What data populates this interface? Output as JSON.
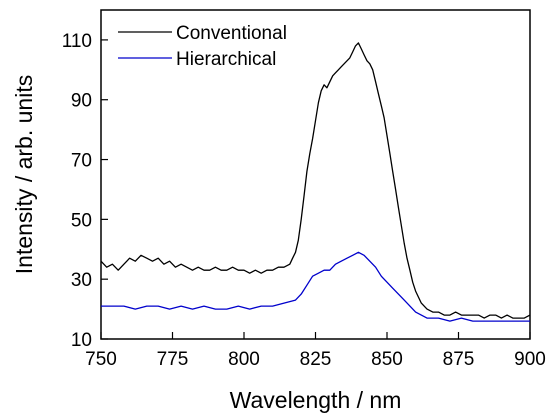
{
  "chart_data": {
    "type": "line",
    "title": "",
    "xlabel": "Wavelength / nm",
    "ylabel": "Intensity / arb. units",
    "xlim": [
      750,
      900
    ],
    "ylim": [
      10,
      120
    ],
    "x_ticks": [
      750,
      775,
      800,
      825,
      850,
      875,
      900
    ],
    "y_ticks": [
      10,
      30,
      50,
      70,
      90,
      110
    ],
    "grid": false,
    "legend_position": "top-left",
    "series": [
      {
        "name": "Conventional",
        "color": "#000000",
        "x": [
          750,
          752,
          754,
          756,
          758,
          760,
          762,
          764,
          766,
          768,
          770,
          772,
          774,
          776,
          778,
          780,
          782,
          784,
          786,
          788,
          790,
          792,
          794,
          796,
          798,
          800,
          802,
          804,
          806,
          808,
          810,
          812,
          814,
          816,
          817,
          818,
          819,
          820,
          821,
          822,
          823,
          824,
          825,
          826,
          827,
          828,
          829,
          830,
          831,
          832,
          833,
          834,
          835,
          836,
          837,
          838,
          839,
          840,
          841,
          842,
          843,
          844,
          845,
          846,
          847,
          848,
          849,
          850,
          851,
          852,
          853,
          854,
          855,
          856,
          857,
          858,
          859,
          860,
          862,
          864,
          866,
          868,
          870,
          872,
          874,
          876,
          878,
          880,
          882,
          884,
          886,
          888,
          890,
          892,
          894,
          896,
          898,
          900
        ],
        "y": [
          36,
          34,
          35,
          33,
          35,
          37,
          36,
          38,
          37,
          36,
          37,
          35,
          36,
          34,
          35,
          34,
          33,
          34,
          33,
          33,
          34,
          33,
          33,
          34,
          33,
          33,
          32,
          33,
          32,
          33,
          33,
          34,
          34,
          35,
          37,
          39,
          43,
          50,
          58,
          66,
          72,
          77,
          83,
          89,
          93,
          95,
          94,
          96,
          98,
          99,
          100,
          101,
          102,
          103,
          104,
          106,
          108,
          109,
          107,
          105,
          103,
          102,
          100,
          96,
          92,
          88,
          84,
          78,
          72,
          66,
          60,
          54,
          48,
          42,
          37,
          33,
          29,
          26,
          22,
          20,
          19,
          19,
          18,
          18,
          19,
          18,
          18,
          18,
          18,
          17,
          18,
          18,
          17,
          18,
          17,
          17,
          17,
          18
        ]
      },
      {
        "name": "Hierarchical",
        "color": "#0000cc",
        "x": [
          750,
          754,
          758,
          762,
          766,
          770,
          774,
          778,
          782,
          786,
          790,
          794,
          798,
          802,
          806,
          810,
          814,
          818,
          820,
          822,
          824,
          826,
          828,
          830,
          832,
          834,
          836,
          838,
          840,
          842,
          844,
          846,
          848,
          850,
          852,
          854,
          856,
          858,
          860,
          862,
          864,
          866,
          868,
          872,
          876,
          880,
          884,
          888,
          892,
          896,
          900
        ],
        "y": [
          21,
          21,
          21,
          20,
          21,
          21,
          20,
          21,
          20,
          21,
          20,
          20,
          21,
          20,
          21,
          21,
          22,
          23,
          25,
          28,
          31,
          32,
          33,
          33,
          35,
          36,
          37,
          38,
          39,
          38,
          36,
          34,
          31,
          29,
          27,
          25,
          23,
          21,
          19,
          18,
          17,
          17,
          17,
          16,
          17,
          16,
          16,
          16,
          16,
          16,
          16
        ]
      }
    ]
  }
}
